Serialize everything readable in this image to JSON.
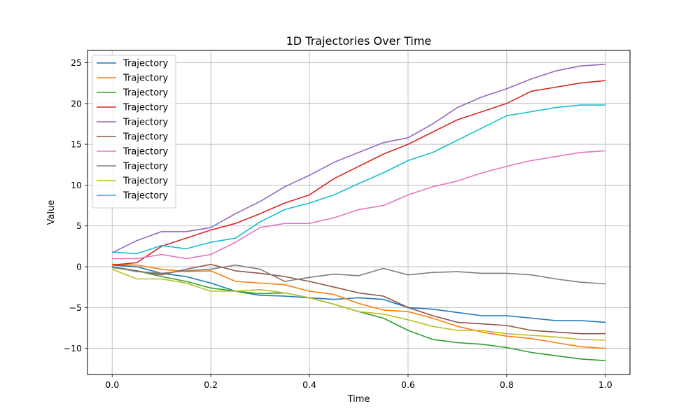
{
  "chart_data": {
    "type": "line",
    "title": "1D Trajectories Over Time",
    "xlabel": "Time",
    "ylabel": "Value",
    "xlim": [
      -0.05,
      1.05
    ],
    "ylim": [
      -13.2,
      26.5
    ],
    "xticks": [
      0.0,
      0.2,
      0.4,
      0.6,
      0.8,
      1.0
    ],
    "xtick_labels": [
      "0.0",
      "0.2",
      "0.4",
      "0.6",
      "0.8",
      "1.0"
    ],
    "yticks": [
      -10,
      -5,
      0,
      5,
      10,
      15,
      20,
      25
    ],
    "ytick_labels": [
      "−10",
      "−5",
      "0",
      "5",
      "10",
      "15",
      "20",
      "25"
    ],
    "grid": true,
    "legend_position": "upper-left",
    "series": [
      {
        "name": "Trajectory",
        "color": "#1f77b4",
        "x": [
          0,
          0.05,
          0.1,
          0.15,
          0.2,
          0.25,
          0.3,
          0.35,
          0.4,
          0.45,
          0.5,
          0.55,
          0.6,
          0.65,
          0.7,
          0.75,
          0.8,
          0.85,
          0.9,
          0.95,
          1.0
        ],
        "y": [
          0.2,
          0.0,
          -0.8,
          -1.2,
          -2.0,
          -3.0,
          -3.5,
          -3.6,
          -3.8,
          -4.0,
          -3.8,
          -4.0,
          -5.0,
          -5.2,
          -5.6,
          -6.0,
          -6.0,
          -6.3,
          -6.6,
          -6.6,
          -6.8
        ]
      },
      {
        "name": "Trajectory",
        "color": "#ff7f0e",
        "x": [
          0,
          0.05,
          0.1,
          0.15,
          0.2,
          0.25,
          0.3,
          0.35,
          0.4,
          0.45,
          0.5,
          0.55,
          0.6,
          0.65,
          0.7,
          0.75,
          0.8,
          0.85,
          0.9,
          0.95,
          1.0
        ],
        "y": [
          0.3,
          0.2,
          -0.3,
          -0.6,
          -0.5,
          -1.8,
          -2.0,
          -2.2,
          -3.0,
          -3.4,
          -4.5,
          -5.3,
          -5.5,
          -6.3,
          -7.3,
          -8.0,
          -8.5,
          -8.8,
          -9.3,
          -9.8,
          -10.0
        ]
      },
      {
        "name": "Trajectory",
        "color": "#2ca02c",
        "x": [
          0,
          0.05,
          0.1,
          0.15,
          0.2,
          0.25,
          0.3,
          0.35,
          0.4,
          0.45,
          0.5,
          0.55,
          0.6,
          0.65,
          0.7,
          0.75,
          0.8,
          0.85,
          0.9,
          0.95,
          1.0
        ],
        "y": [
          -0.1,
          -0.5,
          -1.2,
          -1.8,
          -2.6,
          -3.0,
          -3.3,
          -3.2,
          -3.8,
          -4.6,
          -5.5,
          -6.3,
          -7.8,
          -8.9,
          -9.3,
          -9.5,
          -9.9,
          -10.5,
          -10.9,
          -11.3,
          -11.5
        ]
      },
      {
        "name": "Trajectory",
        "color": "#d62728",
        "x": [
          0,
          0.05,
          0.1,
          0.15,
          0.2,
          0.25,
          0.3,
          0.35,
          0.4,
          0.45,
          0.5,
          0.55,
          0.6,
          0.65,
          0.7,
          0.75,
          0.8,
          0.85,
          0.9,
          0.95,
          1.0
        ],
        "y": [
          0.2,
          0.5,
          2.5,
          3.5,
          4.5,
          5.3,
          6.5,
          7.8,
          8.8,
          10.8,
          12.3,
          13.8,
          15.0,
          16.5,
          18.0,
          19.0,
          20.0,
          21.5,
          22.0,
          22.5,
          22.8
        ]
      },
      {
        "name": "Trajectory",
        "color": "#9467bd",
        "x": [
          0,
          0.05,
          0.1,
          0.15,
          0.2,
          0.25,
          0.3,
          0.35,
          0.4,
          0.45,
          0.5,
          0.55,
          0.6,
          0.65,
          0.7,
          0.75,
          0.8,
          0.85,
          0.9,
          0.95,
          1.0
        ],
        "y": [
          1.7,
          3.2,
          4.3,
          4.3,
          4.8,
          6.5,
          8.0,
          9.8,
          11.2,
          12.8,
          14.0,
          15.2,
          15.8,
          17.5,
          19.5,
          20.8,
          21.8,
          23.0,
          24.0,
          24.6,
          24.8
        ]
      },
      {
        "name": "Trajectory",
        "color": "#8c564b",
        "x": [
          0,
          0.05,
          0.1,
          0.15,
          0.2,
          0.25,
          0.3,
          0.35,
          0.4,
          0.45,
          0.5,
          0.55,
          0.6,
          0.65,
          0.7,
          0.75,
          0.8,
          0.85,
          0.9,
          0.95,
          1.0
        ],
        "y": [
          0.0,
          -0.5,
          -1.0,
          -0.3,
          0.3,
          -0.5,
          -0.8,
          -1.2,
          -1.8,
          -2.5,
          -3.2,
          -3.6,
          -5.0,
          -6.0,
          -6.8,
          -7.0,
          -7.2,
          -7.8,
          -8.0,
          -8.2,
          -8.2
        ]
      },
      {
        "name": "Trajectory",
        "color": "#e377c2",
        "x": [
          0,
          0.05,
          0.1,
          0.15,
          0.2,
          0.25,
          0.3,
          0.35,
          0.4,
          0.45,
          0.5,
          0.55,
          0.6,
          0.65,
          0.7,
          0.75,
          0.8,
          0.85,
          0.9,
          0.95,
          1.0
        ],
        "y": [
          1.0,
          1.0,
          1.5,
          1.0,
          1.5,
          3.0,
          4.8,
          5.3,
          5.3,
          6.0,
          7.0,
          7.5,
          8.8,
          9.8,
          10.5,
          11.5,
          12.3,
          13.0,
          13.5,
          14.0,
          14.2
        ]
      },
      {
        "name": "Trajectory",
        "color": "#7f7f7f",
        "x": [
          0,
          0.05,
          0.1,
          0.15,
          0.2,
          0.25,
          0.3,
          0.35,
          0.4,
          0.45,
          0.5,
          0.55,
          0.6,
          0.65,
          0.7,
          0.75,
          0.8,
          0.85,
          0.9,
          0.95,
          1.0
        ],
        "y": [
          0.0,
          -0.6,
          -0.8,
          -0.5,
          -0.3,
          0.2,
          -0.3,
          -1.8,
          -1.3,
          -0.9,
          -1.1,
          -0.2,
          -1.0,
          -0.7,
          -0.6,
          -0.8,
          -0.8,
          -1.0,
          -1.5,
          -1.9,
          -2.1
        ]
      },
      {
        "name": "Trajectory",
        "color": "#bcbd22",
        "x": [
          0,
          0.05,
          0.1,
          0.15,
          0.2,
          0.25,
          0.3,
          0.35,
          0.4,
          0.45,
          0.5,
          0.55,
          0.6,
          0.65,
          0.7,
          0.75,
          0.8,
          0.85,
          0.9,
          0.95,
          1.0
        ],
        "y": [
          -0.3,
          -1.5,
          -1.5,
          -2.0,
          -3.0,
          -3.0,
          -2.8,
          -3.2,
          -3.8,
          -4.6,
          -5.5,
          -5.8,
          -6.5,
          -7.3,
          -7.8,
          -7.8,
          -8.2,
          -8.4,
          -8.6,
          -8.9,
          -9.0
        ]
      },
      {
        "name": "Trajectory",
        "color": "#17becf",
        "x": [
          0,
          0.05,
          0.1,
          0.15,
          0.2,
          0.25,
          0.3,
          0.35,
          0.4,
          0.45,
          0.5,
          0.55,
          0.6,
          0.65,
          0.7,
          0.75,
          0.8,
          0.85,
          0.9,
          0.95,
          1.0
        ],
        "y": [
          1.8,
          1.6,
          2.6,
          2.2,
          3.0,
          3.5,
          5.5,
          7.0,
          7.8,
          8.8,
          10.2,
          11.5,
          13.0,
          14.0,
          15.5,
          17.0,
          18.5,
          19.0,
          19.5,
          19.8,
          19.8
        ]
      }
    ]
  }
}
